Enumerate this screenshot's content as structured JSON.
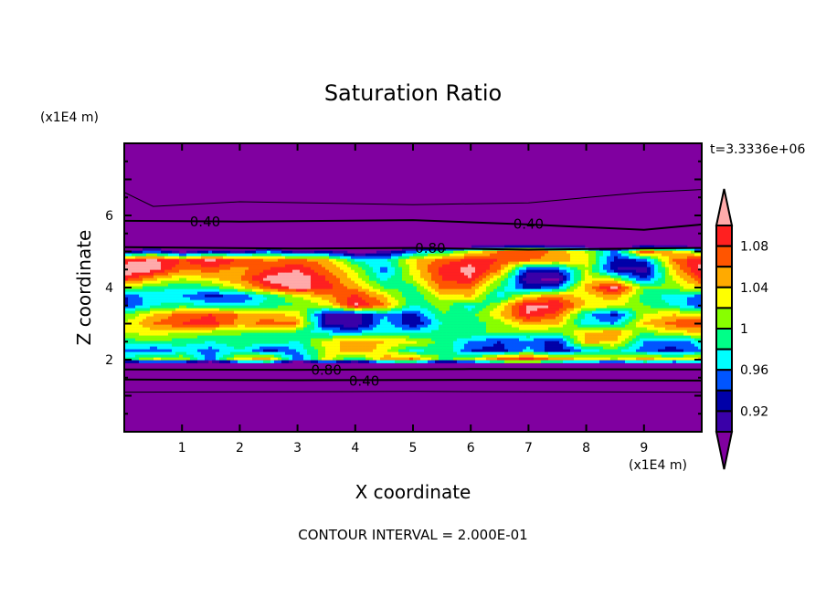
{
  "chart_data": {
    "type": "heatmap",
    "subtype": "filled-contour",
    "title": "Saturation Ratio",
    "xlabel": "X coordinate",
    "ylabel": "Z coordinate",
    "x_unit": "(x1E4 m)",
    "y_unit": "(x1E4 m)",
    "time_label": "t=3.3336e+06",
    "footer": "CONTOUR INTERVAL = 2.000E-01",
    "xlim": [
      0,
      10
    ],
    "ylim": [
      0,
      8
    ],
    "x_ticks": [
      "1",
      "2",
      "3",
      "4",
      "5",
      "6",
      "7",
      "8",
      "9"
    ],
    "y_ticks": [
      "2",
      "4",
      "6"
    ],
    "colorbar": {
      "labels": [
        "1.08",
        "1.04",
        "1",
        "0.96",
        "0.92"
      ],
      "label_values": [
        1.08,
        1.04,
        1.0,
        0.96,
        0.92
      ],
      "levels": [
        0.9,
        0.92,
        0.94,
        0.96,
        0.98,
        1.0,
        1.02,
        1.04,
        1.06,
        1.08,
        1.1
      ],
      "colors": [
        "#8000a0",
        "#3a00a8",
        "#0000a8",
        "#0055ff",
        "#00ffff",
        "#00ff88",
        "#88ff00",
        "#ffff00",
        "#ffaa00",
        "#ff5500",
        "#ff2020",
        "#ffaaaa"
      ]
    },
    "grid": {
      "x": [
        0,
        0.5,
        1,
        1.5,
        2,
        2.5,
        3,
        3.5,
        4,
        4.5,
        5,
        5.5,
        6,
        6.5,
        7,
        7.5,
        8,
        8.5,
        9,
        9.5,
        10
      ],
      "z": [
        5.25,
        5.0,
        4.75,
        4.5,
        4.25,
        4.0,
        3.75,
        3.5,
        3.25,
        3.0,
        2.75,
        2.5,
        2.25,
        2.0,
        1.75
      ],
      "values": [
        [
          0.8,
          0.8,
          0.8,
          0.8,
          0.8,
          0.8,
          0.8,
          0.8,
          0.8,
          0.8,
          0.8,
          0.8,
          0.8,
          0.8,
          0.8,
          0.8,
          0.8,
          0.8,
          0.8,
          0.8,
          0.8
        ],
        [
          0.9,
          0.95,
          0.88,
          0.93,
          0.9,
          0.96,
          0.9,
          0.92,
          0.88,
          0.9,
          0.95,
          0.98,
          1.02,
          1.06,
          1.08,
          1.05,
          1.02,
          0.95,
          1.08,
          1.04,
          1.0
        ],
        [
          1.09,
          1.11,
          1.08,
          1.11,
          1.08,
          1.06,
          1.07,
          1.05,
          0.98,
          0.97,
          1.04,
          1.07,
          1.09,
          1.08,
          1.06,
          1.05,
          1.03,
          0.93,
          0.94,
          1.06,
          1.1
        ],
        [
          1.12,
          1.11,
          1.06,
          1.07,
          1.05,
          1.08,
          1.1,
          1.06,
          1.02,
          0.95,
          1.03,
          1.09,
          1.11,
          1.06,
          0.93,
          0.94,
          1.02,
          0.92,
          0.91,
          1.04,
          1.11
        ],
        [
          1.09,
          1.05,
          1.02,
          1.04,
          1.06,
          1.11,
          1.12,
          1.08,
          1.03,
          0.97,
          1.02,
          1.08,
          1.1,
          1.02,
          0.9,
          0.89,
          1.03,
          1.01,
          0.93,
          1.02,
          1.08
        ],
        [
          1.02,
          0.99,
          0.98,
          0.99,
          1.03,
          1.08,
          1.11,
          1.09,
          1.05,
          1.0,
          0.99,
          1.07,
          1.06,
          0.99,
          0.93,
          0.95,
          1.05,
          1.11,
          1.0,
          1.01,
          1.04
        ],
        [
          0.94,
          0.97,
          0.96,
          0.93,
          0.94,
          0.98,
          1.02,
          1.05,
          1.09,
          1.04,
          0.98,
          1.03,
          1.04,
          0.97,
          1.04,
          1.06,
          1.03,
          1.05,
          0.99,
          0.97,
          0.95
        ],
        [
          0.93,
          0.98,
          0.99,
          0.98,
          0.97,
          0.99,
          1.0,
          1.02,
          1.11,
          1.06,
          0.98,
          1.01,
          0.97,
          1.02,
          1.11,
          1.1,
          1.04,
          1.03,
          1.0,
          0.98,
          0.94
        ],
        [
          1.0,
          1.04,
          1.07,
          1.08,
          1.06,
          1.05,
          1.03,
          0.92,
          0.91,
          0.96,
          0.93,
          1.0,
          0.99,
          1.04,
          1.1,
          1.07,
          0.97,
          0.93,
          1.02,
          1.04,
          1.03
        ],
        [
          1.02,
          1.06,
          1.08,
          1.09,
          1.05,
          1.07,
          1.06,
          0.91,
          0.9,
          0.97,
          0.92,
          0.98,
          0.99,
          1.01,
          1.05,
          1.04,
          0.97,
          0.96,
          1.04,
          1.07,
          1.08
        ],
        [
          1.02,
          1.03,
          1.02,
          1.01,
          1.0,
          1.0,
          0.99,
          0.97,
          0.96,
          0.98,
          0.97,
          0.99,
          1.0,
          1.0,
          1.01,
          1.0,
          1.04,
          1.06,
          1.0,
          1.03,
          1.04
        ],
        [
          0.99,
          1.0,
          0.99,
          0.98,
          1.0,
          0.99,
          0.98,
          1.03,
          1.05,
          1.04,
          1.03,
          0.99,
          0.96,
          0.94,
          0.95,
          0.93,
          1.05,
          1.04,
          0.96,
          0.95,
          0.97
        ],
        [
          0.96,
          0.94,
          0.97,
          0.95,
          0.98,
          0.93,
          0.96,
          1.02,
          1.06,
          1.03,
          0.97,
          1.0,
          0.94,
          0.93,
          0.97,
          0.92,
          0.97,
          0.99,
          0.95,
          0.93,
          0.96
        ],
        [
          0.98,
          1.03,
          1.02,
          0.95,
          1.04,
          1.06,
          0.94,
          1.03,
          0.97,
          1.05,
          1.07,
          0.99,
          1.02,
          1.08,
          1.1,
          1.06,
          1.04,
          1.02,
          1.06,
          1.03,
          1.05
        ],
        [
          0.7,
          0.7,
          0.7,
          0.7,
          0.7,
          0.7,
          0.7,
          0.7,
          0.7,
          0.7,
          0.7,
          0.7,
          0.7,
          0.7,
          0.7,
          0.7,
          0.7,
          0.7,
          0.7,
          0.7,
          0.7
        ]
      ]
    },
    "contour_lines": [
      {
        "level": 0.2,
        "points": [
          [
            0,
            6.64
          ],
          [
            0.5,
            6.25
          ],
          [
            2,
            6.38
          ],
          [
            5,
            6.3
          ],
          [
            7,
            6.35
          ],
          [
            9,
            6.64
          ],
          [
            10,
            6.72
          ]
        ]
      },
      {
        "level": 0.4,
        "label": "0.40",
        "points": [
          [
            0,
            5.85
          ],
          [
            2,
            5.83
          ],
          [
            5,
            5.87
          ],
          [
            7,
            5.75
          ],
          [
            9,
            5.6
          ],
          [
            10,
            5.75
          ]
        ]
      },
      {
        "level": 0.8,
        "label": "0.80",
        "points": [
          [
            0,
            5.12
          ],
          [
            3,
            5.08
          ],
          [
            5,
            5.1
          ],
          [
            7,
            5.05
          ],
          [
            10,
            5.1
          ]
        ]
      },
      {
        "level": 0.8,
        "label": "0.80",
        "points": [
          [
            0,
            1.73
          ],
          [
            3,
            1.72
          ],
          [
            6,
            1.74
          ],
          [
            10,
            1.73
          ]
        ]
      },
      {
        "level": 0.4,
        "label": "0.40",
        "points": [
          [
            0,
            1.45
          ],
          [
            3,
            1.43
          ],
          [
            6,
            1.44
          ],
          [
            10,
            1.42
          ]
        ]
      },
      {
        "level": 0.2,
        "points": [
          [
            0,
            1.1
          ],
          [
            5,
            1.12
          ],
          [
            10,
            1.1
          ]
        ]
      }
    ],
    "contour_labels": [
      {
        "text": "0.40",
        "x": 1.4,
        "z": 5.85
      },
      {
        "text": "0.40",
        "x": 7.0,
        "z": 5.78
      },
      {
        "text": "0.80",
        "x": 5.3,
        "z": 5.12
      },
      {
        "text": "0.80",
        "x": 3.5,
        "z": 1.73
      },
      {
        "text": "0.40",
        "x": 3.5,
        "z": 1.43
      }
    ]
  }
}
